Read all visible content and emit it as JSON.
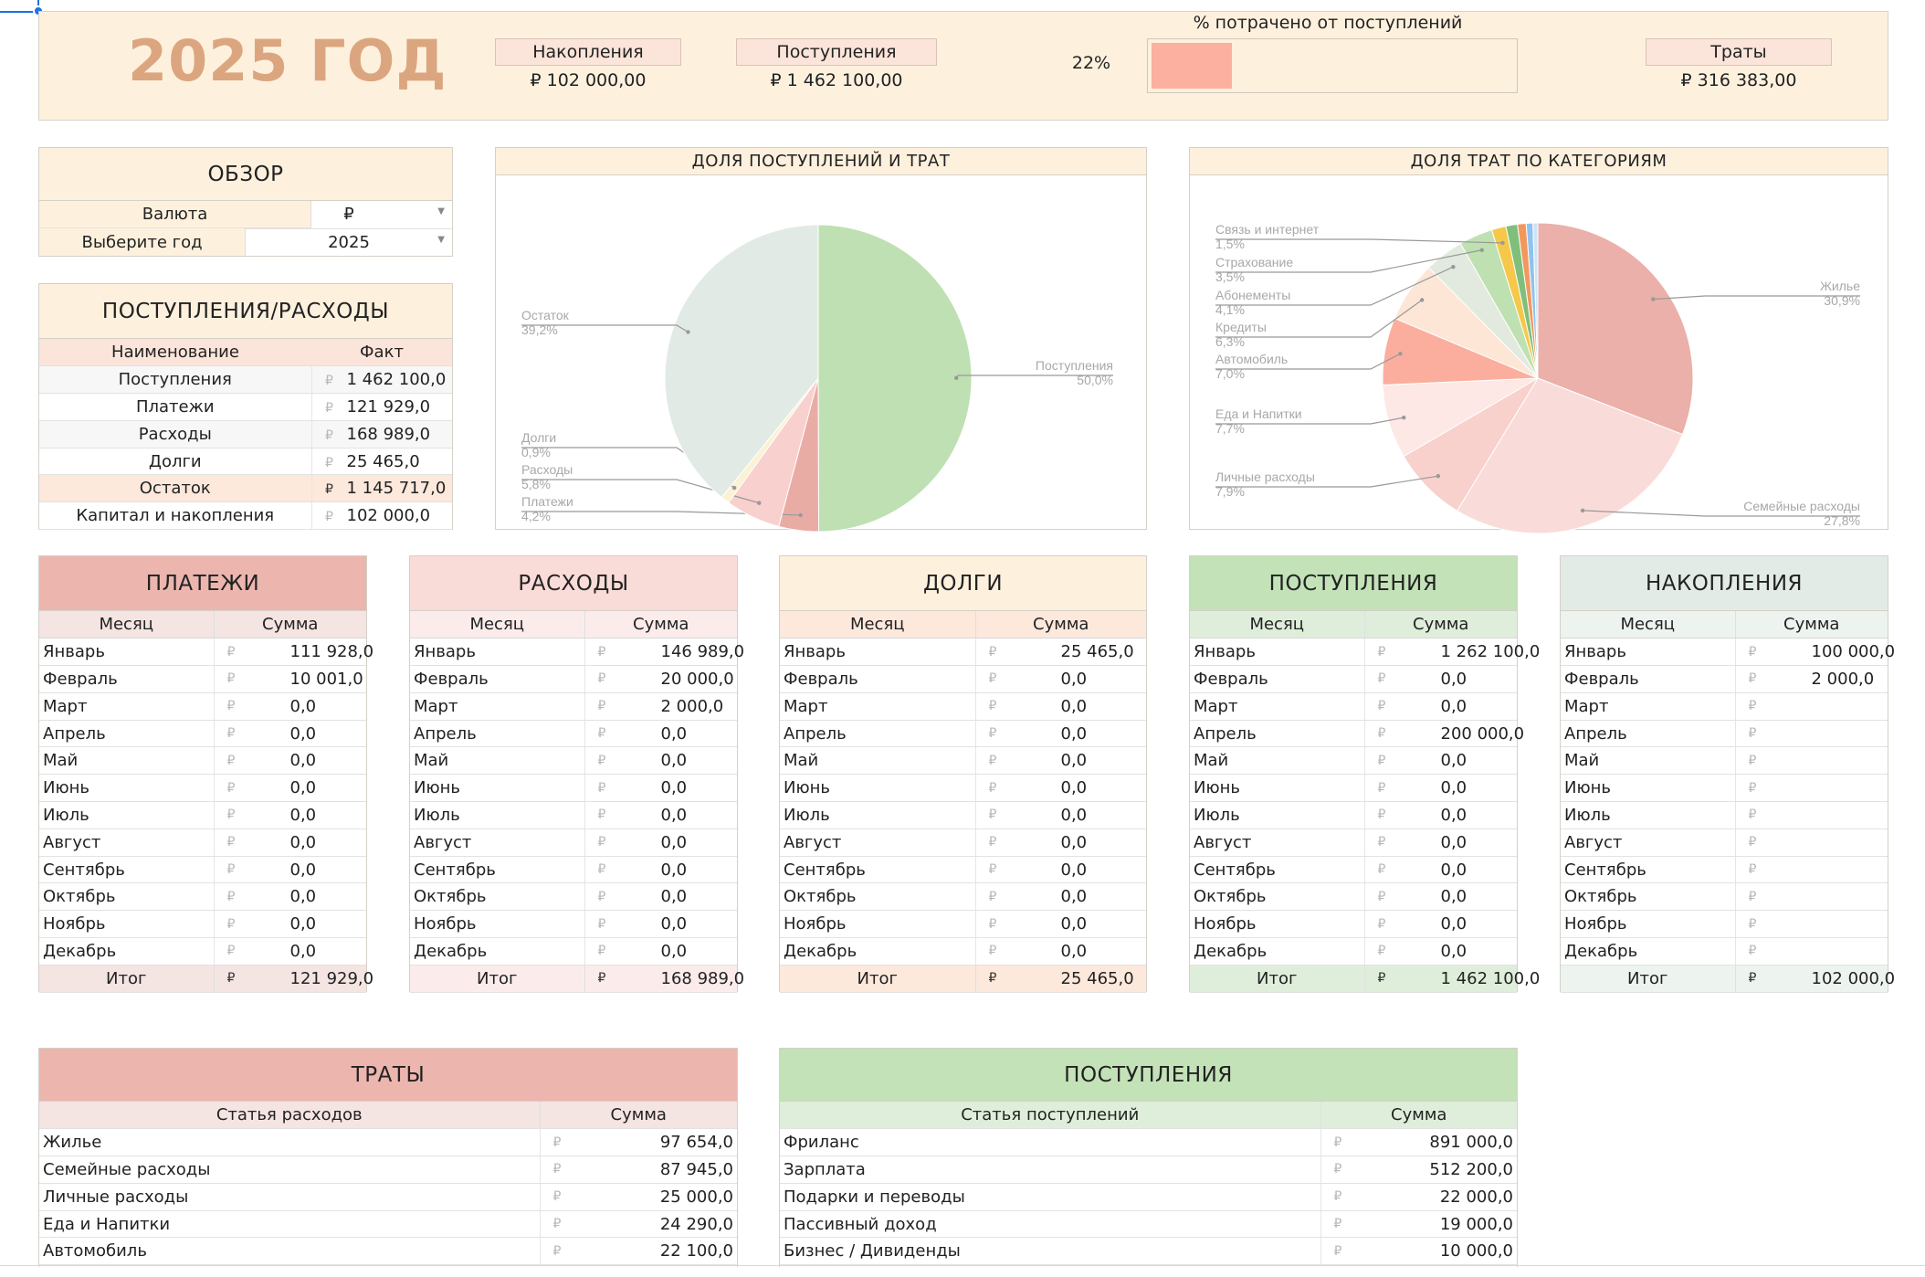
{
  "header": {
    "title": "2025 ГОД",
    "savings_label": "Накопления",
    "savings_value": "₽ 102 000,00",
    "income_label": "Поступления",
    "income_value": "₽ 1 462 100,00",
    "pct_label": "% потрачено от поступлений",
    "pct_value": "22%",
    "pct_fraction": 0.22,
    "spend_label": "Траты",
    "spend_value": "₽ 316 383,00"
  },
  "overview": {
    "title": "ОБЗОР",
    "currency_label": "Валюта",
    "currency_value": "₽",
    "year_label": "Выберите год",
    "year_value": "2025"
  },
  "income_expense": {
    "title": "ПОСТУПЛЕНИЯ/РАСХОДЫ",
    "col_name": "Наименование",
    "col_fact": "Факт",
    "rows": [
      {
        "name": "Поступления",
        "cur": "₽",
        "value": "1 462 100,0"
      },
      {
        "name": "Платежи",
        "cur": "₽",
        "value": "121 929,0"
      },
      {
        "name": "Расходы",
        "cur": "₽",
        "value": "168 989,0"
      },
      {
        "name": "Долги",
        "cur": "₽",
        "value": "25 465,0"
      },
      {
        "name": "Остаток",
        "cur": "₽",
        "value": "1 145 717,0"
      },
      {
        "name": "Капитал и накопления",
        "cur": "₽",
        "value": "102 000,0"
      }
    ]
  },
  "chart_data": [
    {
      "type": "pie",
      "title": "ДОЛЯ ПОСТУПЛЕНИЙ И ТРАТ",
      "slices": [
        {
          "name": "Поступления",
          "value": 50.0,
          "label": "50,0%",
          "color": "#bfe0b3"
        },
        {
          "name": "Платежи",
          "value": 4.2,
          "label": "4,2%",
          "color": "#e9aca5"
        },
        {
          "name": "Расходы",
          "value": 5.8,
          "label": "5,8%",
          "color": "#f8d0ce"
        },
        {
          "name": "Долги",
          "value": 0.9,
          "label": "0,9%",
          "color": "#fbf1d3"
        },
        {
          "name": "Остаток",
          "value": 39.2,
          "label": "39,2%",
          "color": "#e2eae6"
        }
      ]
    },
    {
      "type": "pie",
      "title": "ДОЛЯ ТРАТ ПО КАТЕГОРИЯМ",
      "slices": [
        {
          "name": "Жилье",
          "value": 30.9,
          "label": "30,9%",
          "color": "#eab0a9"
        },
        {
          "name": "Семейные расходы",
          "value": 27.8,
          "label": "27,8%",
          "color": "#f9dcd9"
        },
        {
          "name": "Личные расходы",
          "value": 7.9,
          "label": "7,9%",
          "color": "#f8d0cc"
        },
        {
          "name": "Еда и Напитки",
          "value": 7.7,
          "label": "7,7%",
          "color": "#fde8e5"
        },
        {
          "name": "Автомобиль",
          "value": 7.0,
          "label": "7,0%",
          "color": "#fbae9e"
        },
        {
          "name": "Кредиты",
          "value": 6.3,
          "label": "6,3%",
          "color": "#fde6d6"
        },
        {
          "name": "Абонементы",
          "value": 4.1,
          "label": "4,1%",
          "color": "#e2eae0"
        },
        {
          "name": "Страхование",
          "value": 3.5,
          "label": "3,5%",
          "color": "#bfe0b1"
        },
        {
          "name": "Связь и интернет",
          "value": 1.5,
          "label": "1,5%",
          "color": "#f5c84a"
        },
        {
          "name": "",
          "value": 1.2,
          "label": "",
          "color": "#7fbf7b"
        },
        {
          "name": "",
          "value": 0.9,
          "label": "",
          "color": "#f3985d"
        },
        {
          "name": "",
          "value": 0.7,
          "label": "",
          "color": "#8ec3ef"
        },
        {
          "name": "",
          "value": 0.5,
          "label": "",
          "color": "#cfe3f6"
        }
      ]
    }
  ],
  "months": [
    "Январь",
    "Февраль",
    "Март",
    "Апрель",
    "Май",
    "Июнь",
    "Июль",
    "Август",
    "Сентябрь",
    "Октябрь",
    "Ноябрь",
    "Декабрь"
  ],
  "cur": "₽",
  "col_month": "Месяц",
  "col_sum": "Сумма",
  "total_label": "Итог",
  "monthly_tables": [
    {
      "id": "payments",
      "title": "ПЛАТЕЖИ",
      "values": [
        "111 928,0",
        "10 001,0",
        "0,0",
        "0,0",
        "0,0",
        "0,0",
        "0,0",
        "0,0",
        "0,0",
        "0,0",
        "0,0",
        "0,0"
      ],
      "total": "121 929,0",
      "title_bg": "#ecb5ae",
      "head_bg": "#f4e4e2",
      "total_bg": "#f4e4e2"
    },
    {
      "id": "expenses",
      "title": "РАСХОДЫ",
      "values": [
        "146 989,0",
        "20 000,0",
        "2 000,0",
        "0,0",
        "0,0",
        "0,0",
        "0,0",
        "0,0",
        "0,0",
        "0,0",
        "0,0",
        "0,0"
      ],
      "total": "168 989,0",
      "title_bg": "#f9dbd8",
      "head_bg": "#fbeceb",
      "total_bg": "#fbeceb"
    },
    {
      "id": "debts",
      "title": "ДОЛГИ",
      "values": [
        "25 465,0",
        "0,0",
        "0,0",
        "0,0",
        "0,0",
        "0,0",
        "0,0",
        "0,0",
        "0,0",
        "0,0",
        "0,0",
        "0,0"
      ],
      "total": "25 465,0",
      "title_bg": "#fdf1de",
      "head_bg": "#fde8dc",
      "total_bg": "#fde8dc"
    },
    {
      "id": "income",
      "title": "ПОСТУПЛЕНИЯ",
      "values": [
        "1 262 100,0",
        "0,0",
        "0,0",
        "200 000,0",
        "0,0",
        "0,0",
        "0,0",
        "0,0",
        "0,0",
        "0,0",
        "0,0",
        "0,0"
      ],
      "total": "1 462 100,0",
      "title_bg": "#c3e2b8",
      "head_bg": "#dfeedb",
      "total_bg": "#dfeedb"
    },
    {
      "id": "savings",
      "title": "НАКОПЛЕНИЯ",
      "values": [
        "100 000,0",
        "2 000,0",
        "",
        "",
        "",
        "",
        "",
        "",
        "",
        "",
        "",
        ""
      ],
      "total": "102 000,0",
      "title_bg": "#e3ebe6",
      "head_bg": "#edf3ef",
      "total_bg": "#edf3ef"
    }
  ],
  "spending": {
    "title": "ТРАТЫ",
    "col_item": "Статья расходов",
    "col_sum": "Сумма",
    "rows": [
      {
        "name": "Жилье",
        "value": "97 654,0"
      },
      {
        "name": "Семейные расходы",
        "value": "87 945,0"
      },
      {
        "name": "Личные расходы",
        "value": "25 000,0"
      },
      {
        "name": "Еда и Напитки",
        "value": "24 290,0"
      },
      {
        "name": "Автомобиль",
        "value": "22 100,0"
      }
    ]
  },
  "income_sources": {
    "title": "ПОСТУПЛЕНИЯ",
    "col_item": "Статья поступлений",
    "col_sum": "Сумма",
    "rows": [
      {
        "name": "Фриланс",
        "value": "891 000,0"
      },
      {
        "name": "Зарплата",
        "value": "512 200,0"
      },
      {
        "name": "Подарки и переводы",
        "value": "22 000,0"
      },
      {
        "name": "Пассивный доход",
        "value": "19 000,0"
      },
      {
        "name": "Бизнес / Дивиденды",
        "value": "10 000,0"
      }
    ]
  }
}
